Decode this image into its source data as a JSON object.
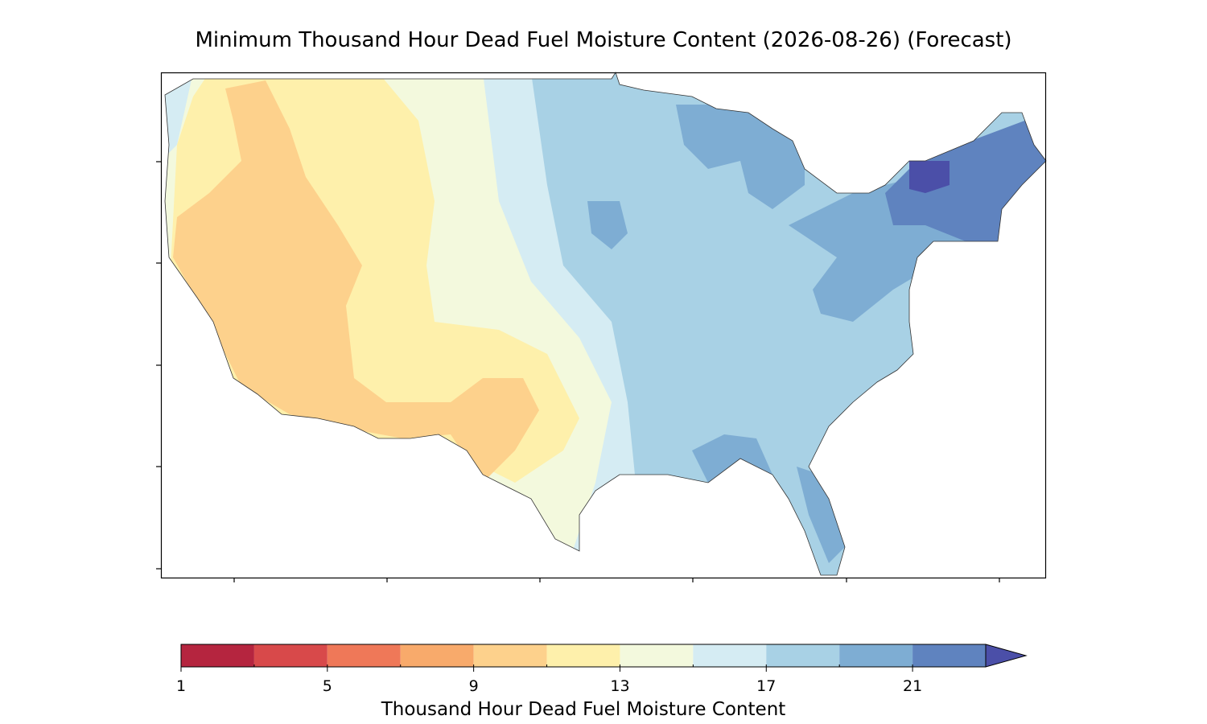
{
  "title": "Minimum Thousand Hour Dead Fuel Moisture Content (2026-08-26) (Forecast)",
  "colorbar": {
    "label": "Thousand Hour Dead Fuel Moisture Content",
    "levels": [
      1,
      3,
      5,
      7,
      9,
      11,
      13,
      15,
      17,
      19,
      21,
      23
    ],
    "colors": [
      "#b5253f",
      "#d8494a",
      "#ef7858",
      "#f8aa6b",
      "#fdd18c",
      "#fef0ab",
      "#f3f9dd",
      "#d5ecf3",
      "#a8d1e5",
      "#7eadd3",
      "#5f83bf"
    ],
    "extend_color": "#4b4fa8",
    "lim": [
      1,
      23
    ],
    "ticks": [
      1,
      5,
      9,
      13,
      17,
      21
    ]
  }
}
